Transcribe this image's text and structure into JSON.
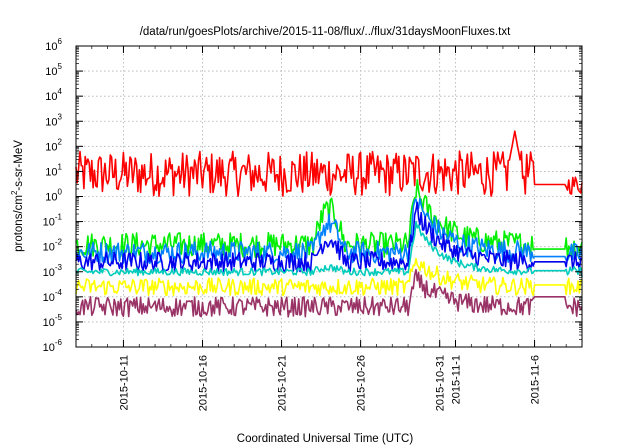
{
  "chart_data": {
    "type": "line",
    "title": "/data/run/goesPlots/archive/2015-11-08/flux/../flux/31daysMoonFluxes.txt",
    "xlabel": "Coordinated Universal Time (UTC)",
    "ylabel": {
      "prefix": "protons/cm",
      "exponent": "2",
      "suffix": "-s-sr-MeV"
    },
    "yscale": "log",
    "ylim": [
      1e-06,
      1000000.0
    ],
    "xlim": [
      "2015-10-08",
      "2015-11-09"
    ],
    "grid": true,
    "legend": "none",
    "y_ticks": [
      {
        "base": "10",
        "exp": "-6"
      },
      {
        "base": "10",
        "exp": "-5"
      },
      {
        "base": "10",
        "exp": "-4"
      },
      {
        "base": "10",
        "exp": "-3"
      },
      {
        "base": "10",
        "exp": "-2"
      },
      {
        "base": "10",
        "exp": "-1"
      },
      {
        "base": "10",
        "exp": "0"
      },
      {
        "base": "10",
        "exp": "1"
      },
      {
        "base": "10",
        "exp": "2"
      },
      {
        "base": "10",
        "exp": "3"
      },
      {
        "base": "10",
        "exp": "4"
      },
      {
        "base": "10",
        "exp": "5"
      },
      {
        "base": "10",
        "exp": "6"
      }
    ],
    "x_ticks": [
      "2015-10-11",
      "2015-10-16",
      "2015-10-21",
      "2015-10-26",
      "2015-10-31",
      "2015-11-1",
      "2015-11-6"
    ],
    "x_tick_dates": [
      "2015-10-11",
      "2015-10-16",
      "2015-10-21",
      "2015-10-26",
      "2015-10-31",
      "2015-11-01",
      "2015-11-06"
    ],
    "series": [
      {
        "color": "#ff0000",
        "base": 8,
        "spread": 0.9,
        "event": {
          "start": "2015-10-29",
          "peak": "2015-10-29T12:00",
          "peak_value": 10
        },
        "spike": {
          "date": "2015-11-04T18:00",
          "value": 400
        },
        "flat": {
          "start": "2015-11-06",
          "end": "2015-11-08",
          "value": 3
        },
        "tail": {
          "start": "2015-11-08",
          "base": 3,
          "spread": 0.4
        }
      },
      {
        "color": "#00ee00",
        "base": 0.012,
        "spread": 0.5,
        "hump": {
          "start": "2015-10-23",
          "end": "2015-10-25",
          "value": 0.3
        },
        "event": {
          "start": "2015-10-29",
          "peak": "2015-10-29T12:00",
          "peak_value": 2
        },
        "flat": {
          "start": "2015-11-06",
          "end": "2015-11-08",
          "value": 0.008
        },
        "tail": {
          "start": "2015-11-08",
          "base": 0.01,
          "spread": 0.5
        }
      },
      {
        "color": "#0080ff",
        "base": 0.006,
        "spread": 0.45,
        "hump": {
          "start": "2015-10-23",
          "end": "2015-10-25",
          "value": 0.08
        },
        "event": {
          "start": "2015-10-29",
          "peak": "2015-10-29T12:00",
          "peak_value": 0.8
        },
        "flat": {
          "start": "2015-11-06",
          "end": "2015-11-08",
          "value": 0.004
        },
        "tail": {
          "start": "2015-11-08",
          "base": 0.005,
          "spread": 0.45
        }
      },
      {
        "color": "#0000ee",
        "base": 0.0025,
        "spread": 0.4,
        "hump": {
          "start": "2015-10-23",
          "end": "2015-10-25",
          "value": 0.02
        },
        "event": {
          "start": "2015-10-29",
          "peak": "2015-10-29T12:00",
          "peak_value": 0.3
        },
        "flat": {
          "start": "2015-11-06",
          "end": "2015-11-08",
          "value": 0.0025
        },
        "tail": {
          "start": "2015-11-08",
          "base": 0.0025,
          "spread": 0.4
        }
      },
      {
        "color": "#00ccbb",
        "base": 0.001,
        "spread": 0.15,
        "hump": {
          "start": "2015-10-23",
          "end": "2015-10-25",
          "value": 0.0015
        },
        "event": {
          "start": "2015-10-29",
          "peak": "2015-10-29T12:00",
          "peak_value": 0.08
        },
        "flat": {
          "start": "2015-11-06",
          "end": "2015-11-08",
          "value": 0.0011
        },
        "tail": {
          "start": "2015-11-08",
          "base": 0.001,
          "spread": 0.2
        }
      },
      {
        "color": "#ffff00",
        "base": 0.00025,
        "spread": 0.35,
        "event": {
          "start": "2015-10-29",
          "peak": "2015-10-29T12:00",
          "peak_value": 0.003
        },
        "flat": {
          "start": "2015-11-06",
          "end": "2015-11-08",
          "value": 0.0003
        },
        "tail": {
          "start": "2015-11-08",
          "base": 0.00025,
          "spread": 0.35
        }
      },
      {
        "color": "#993366",
        "base": 4e-05,
        "spread": 0.4,
        "event": {
          "start": "2015-10-29",
          "peak": "2015-10-29T12:00",
          "peak_value": 0.0005
        },
        "flat": {
          "start": "2015-11-06",
          "end": "2015-11-08",
          "value": 0.0001
        },
        "tail": {
          "start": "2015-11-08",
          "base": 4e-05,
          "spread": 0.4
        }
      }
    ]
  }
}
